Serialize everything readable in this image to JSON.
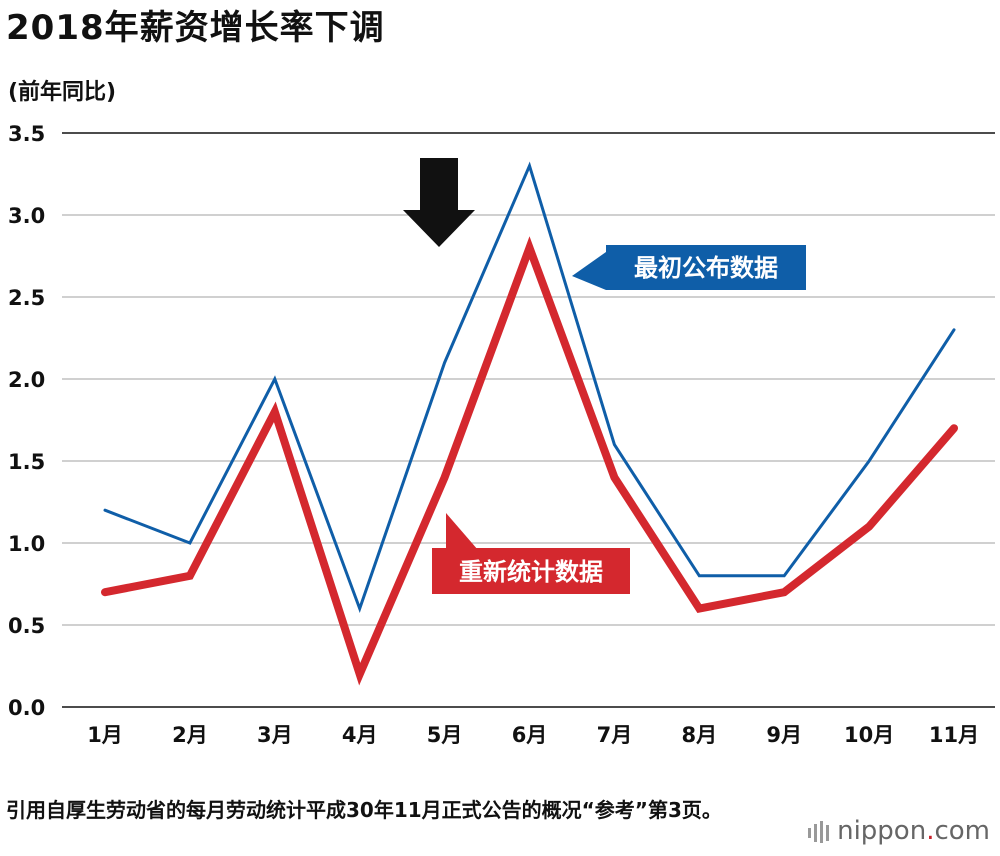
{
  "title": "2018年薪资增长率下调",
  "unit_label": "(前年同比)",
  "footnote": "引用自厚生劳动省的每月劳动统计平成30年11月正式公告的概况“参考”第3页。",
  "brand": {
    "name": "nippon",
    "dot": ".",
    "tld": "com"
  },
  "colors": {
    "original": "#0f5ea8",
    "revised": "#d4282e",
    "grid": "#b5b5b5",
    "axis": "#111111"
  },
  "chart_data": {
    "type": "line",
    "categories": [
      "1月",
      "2月",
      "3月",
      "4月",
      "5月",
      "6月",
      "7月",
      "8月",
      "9月",
      "10月",
      "11月"
    ],
    "ylim": [
      0,
      3.5
    ],
    "yticks": [
      "0.0",
      "0.5",
      "1.0",
      "1.5",
      "2.0",
      "2.5",
      "3.0",
      "3.5"
    ],
    "grid": true,
    "series": [
      {
        "key": "original",
        "name": "最初公布数据",
        "values": [
          1.2,
          1.0,
          2.0,
          0.6,
          2.1,
          3.3,
          1.6,
          0.8,
          0.8,
          1.5,
          2.3
        ]
      },
      {
        "key": "revised",
        "name": "重新统计数据",
        "values": [
          0.7,
          0.8,
          1.8,
          0.2,
          1.4,
          2.8,
          1.4,
          0.6,
          0.7,
          1.1,
          1.7
        ]
      }
    ],
    "annotations": [
      "down-arrow between 5月 and 6月"
    ]
  }
}
